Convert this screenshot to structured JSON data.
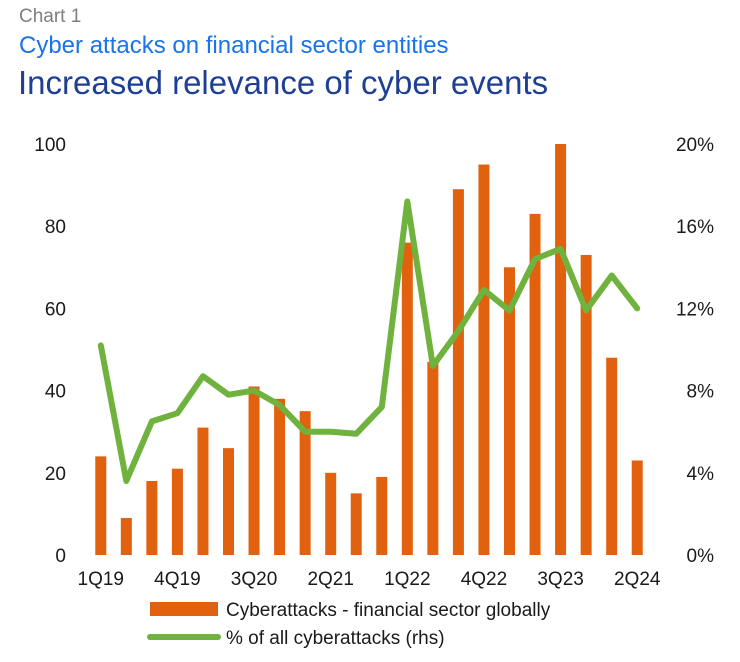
{
  "header": {
    "chart_number": "Chart   1",
    "subtitle": "Cyber attacks on financial sector entities",
    "title": "Increased relevance of cyber events"
  },
  "chart_data": {
    "type": "bar",
    "categories": [
      "1Q19",
      "2Q19",
      "3Q19",
      "4Q19",
      "1Q20",
      "2Q20",
      "3Q20",
      "4Q20",
      "1Q21",
      "2Q21",
      "3Q21",
      "4Q21",
      "1Q22",
      "2Q22",
      "3Q22",
      "4Q22",
      "1Q23",
      "2Q23",
      "3Q23",
      "4Q23",
      "1Q24",
      "2Q24"
    ],
    "x_tick_labels": [
      "1Q19",
      "4Q19",
      "3Q20",
      "2Q21",
      "1Q22",
      "4Q22",
      "3Q23",
      "2Q24"
    ],
    "series": [
      {
        "name": "Cyberattacks - financial sector globally",
        "type": "bar",
        "axis": "left",
        "color": "#e2610e",
        "values": [
          24,
          9,
          18,
          21,
          31,
          26,
          41,
          38,
          35,
          20,
          15,
          19,
          76,
          47,
          89,
          95,
          70,
          83,
          100,
          73,
          48,
          23
        ]
      },
      {
        "name": "% of all cyberattacks (rhs)",
        "type": "line",
        "axis": "right",
        "color": "#6fb23d",
        "values": [
          10.2,
          3.6,
          6.5,
          6.9,
          8.7,
          7.8,
          8.0,
          7.3,
          6.0,
          6.0,
          5.9,
          7.2,
          17.2,
          9.2,
          10.9,
          12.9,
          11.9,
          14.4,
          14.9,
          11.9,
          13.6,
          12.0
        ]
      }
    ],
    "y_left": {
      "ticks": [
        "0",
        "20",
        "40",
        "60",
        "80",
        "100"
      ],
      "ylim": [
        0,
        100
      ]
    },
    "y_right": {
      "ticks": [
        "0%",
        "4%",
        "8%",
        "12%",
        "16%",
        "20%"
      ],
      "ylim": [
        0,
        20
      ]
    },
    "legend_position": "bottom",
    "grid": false
  }
}
